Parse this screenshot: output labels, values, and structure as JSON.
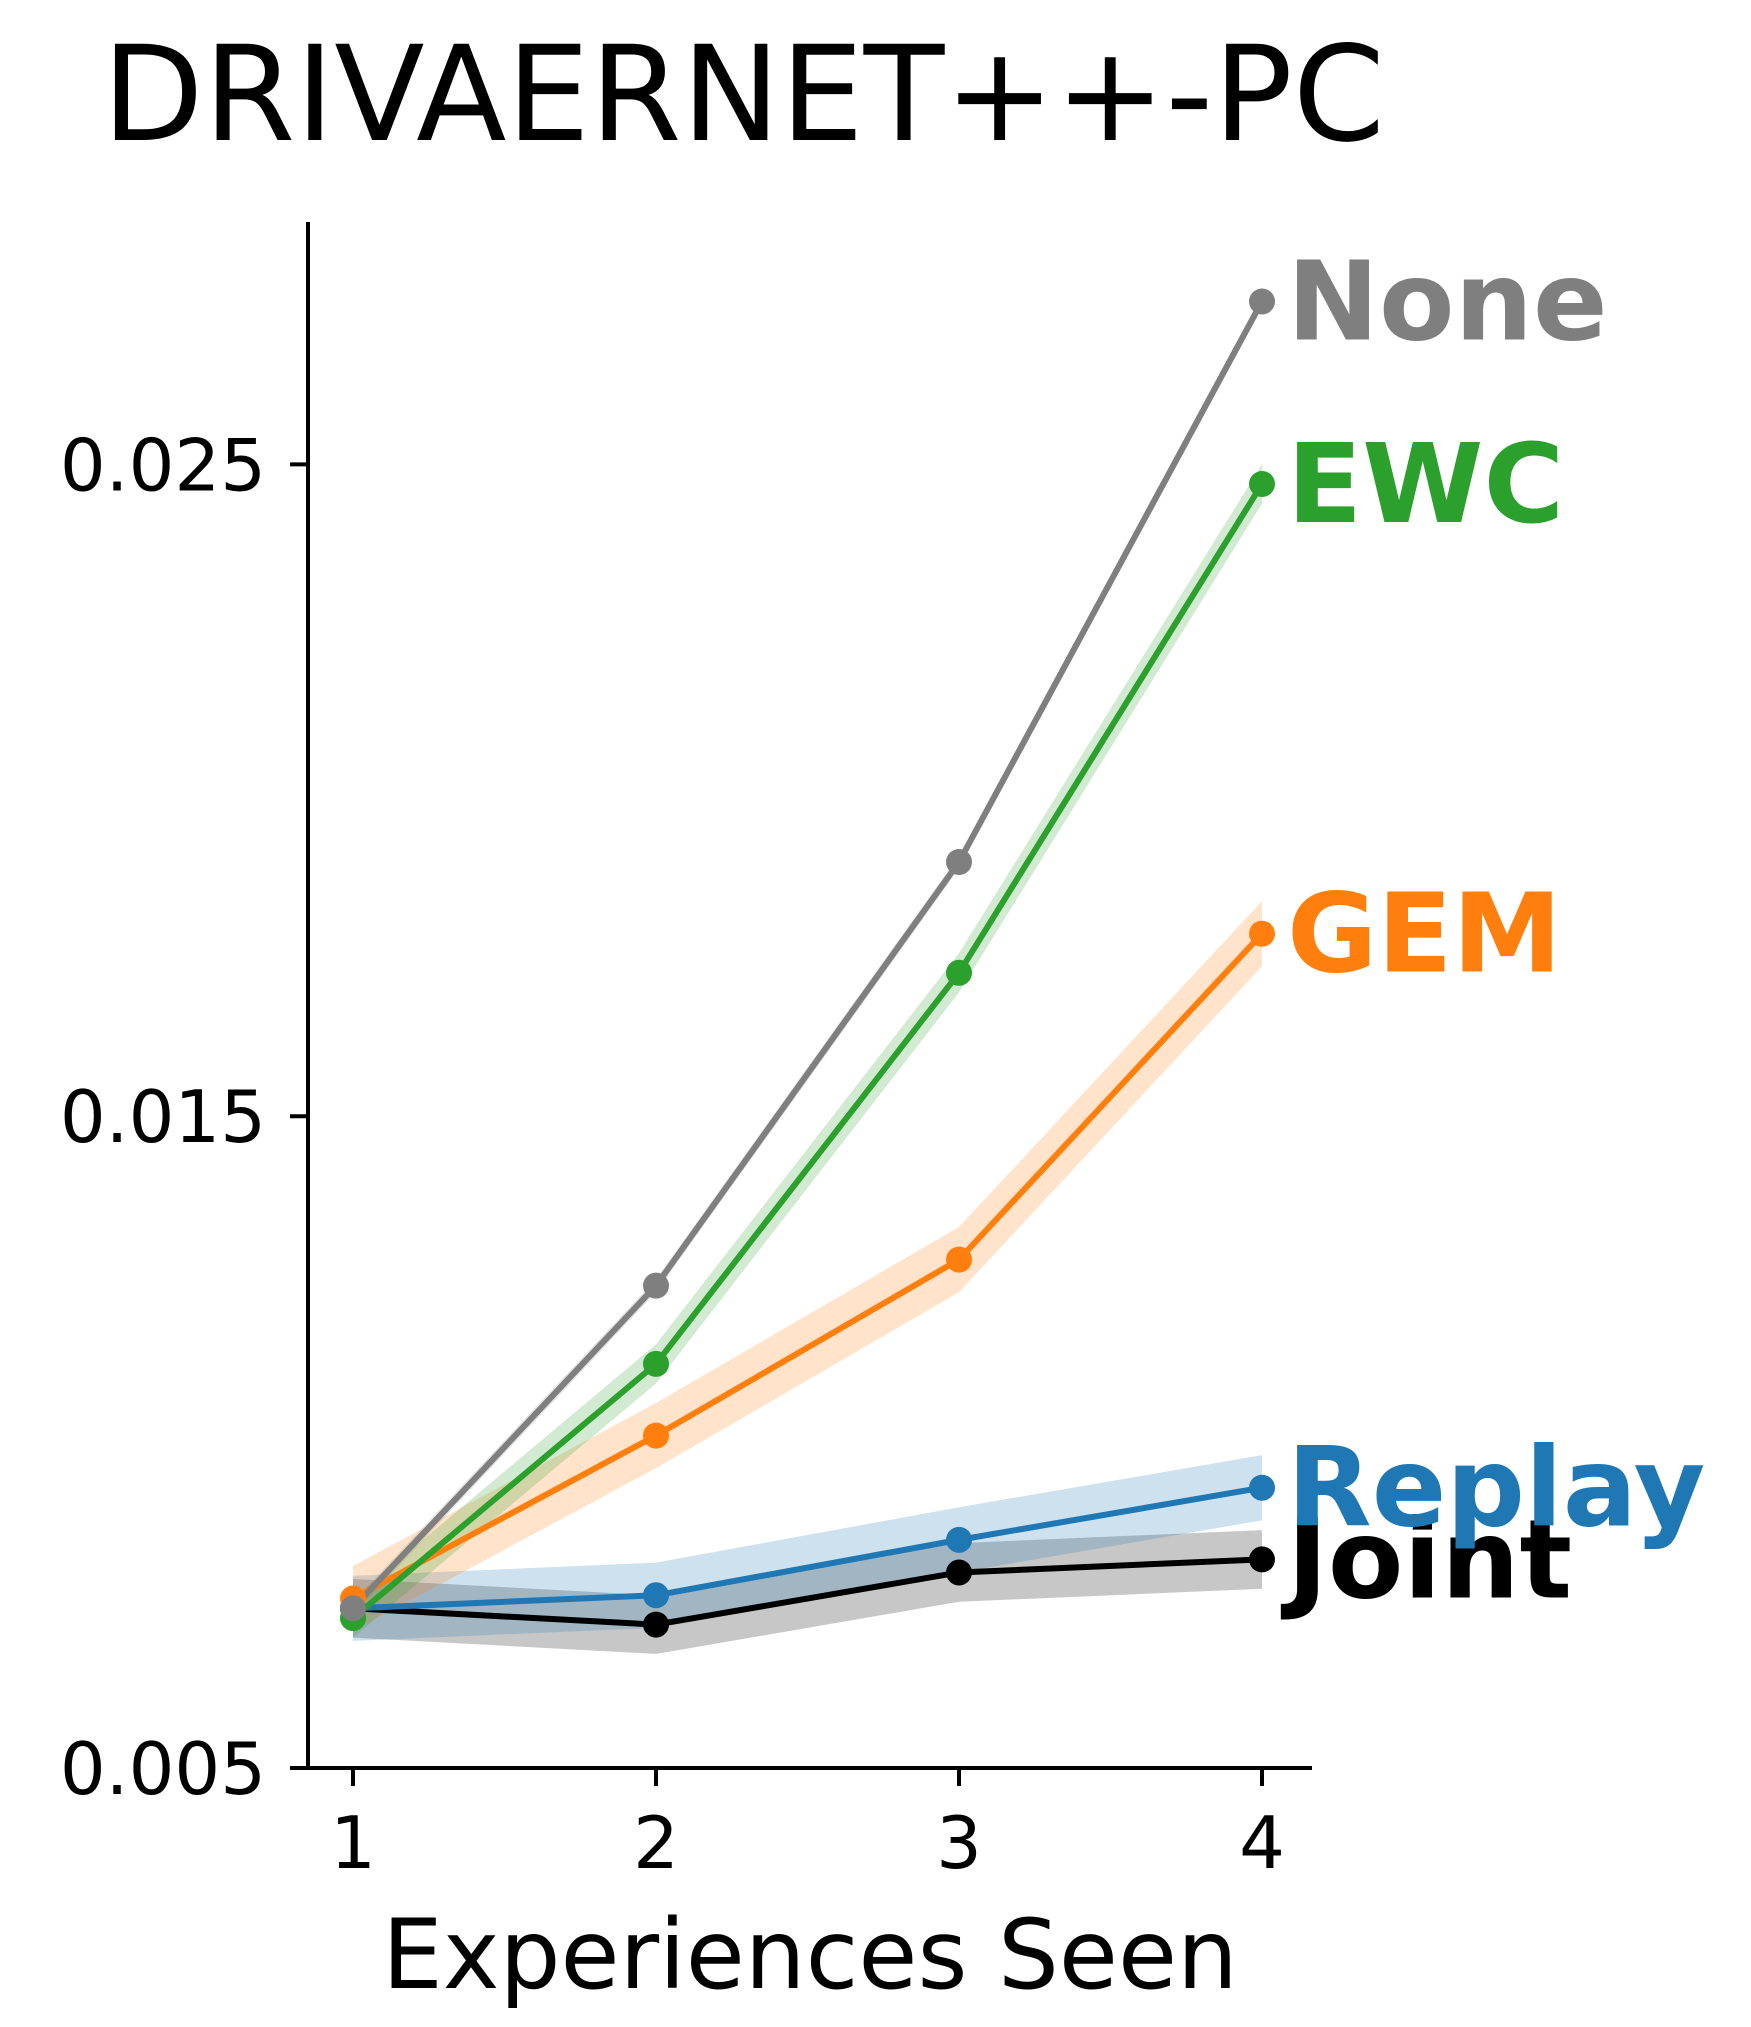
{
  "chart_data": {
    "type": "line",
    "title": "DRIVAERNET++-PC",
    "xlabel": "Experiences Seen",
    "ylabel": "",
    "x": [
      1,
      2,
      3,
      4
    ],
    "xticks": [
      "1",
      "2",
      "3",
      "4"
    ],
    "ylim": [
      0.005,
      0.0287
    ],
    "yticks": [
      "0.005",
      "0.015",
      "0.025"
    ],
    "ytick_values": [
      0.005,
      0.015,
      0.025
    ],
    "grid": false,
    "legend": "inline labels at line ends",
    "series": [
      {
        "name": "Joint",
        "color": "#000000",
        "values": [
          0.00745,
          0.0072,
          0.008,
          0.0082
        ],
        "band": 0.00045
      },
      {
        "name": "Replay",
        "color": "#1f77b4",
        "values": [
          0.00745,
          0.00765,
          0.0085,
          0.0093
        ],
        "band": 0.0005
      },
      {
        "name": "GEM",
        "color": "#ff7f0e",
        "values": [
          0.0076,
          0.0101,
          0.0128,
          0.0178
        ],
        "band": 0.0005
      },
      {
        "name": "EWC",
        "color": "#2ca02c",
        "values": [
          0.0073,
          0.0112,
          0.0172,
          0.0247
        ],
        "band": 0.0003
      },
      {
        "name": "None",
        "color": "#7f7f7f",
        "values": [
          0.00745,
          0.0124,
          0.0189,
          0.0275
        ],
        "band": 0.0001
      }
    ]
  }
}
